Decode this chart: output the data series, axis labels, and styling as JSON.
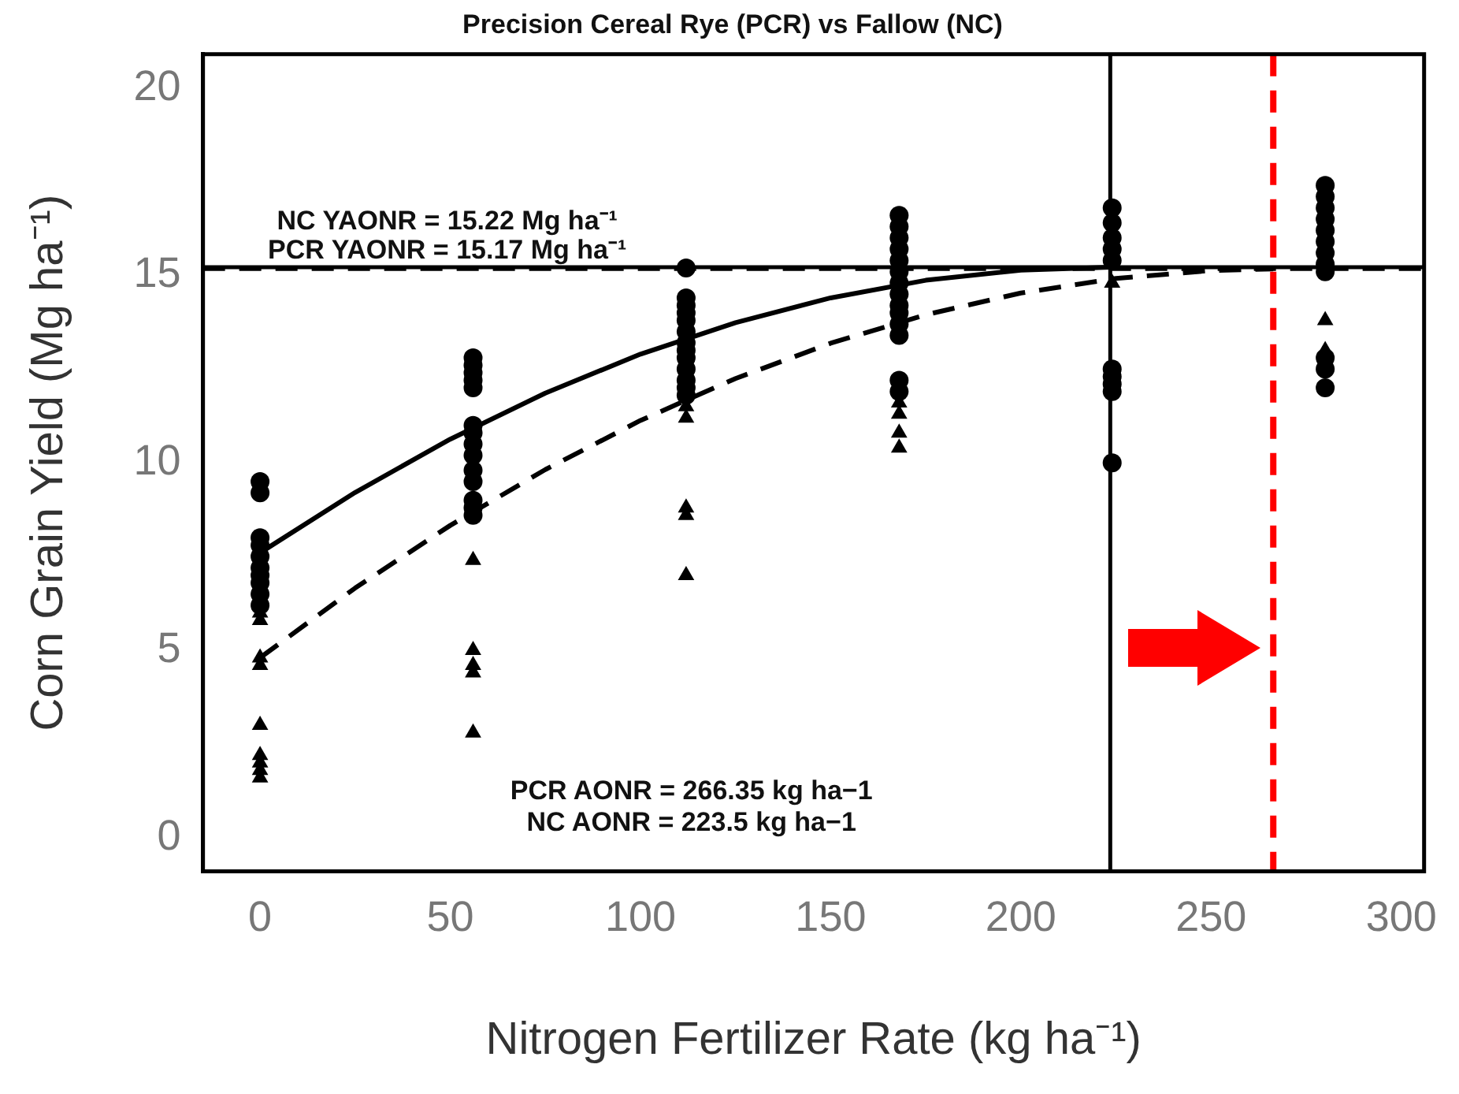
{
  "chart_data": {
    "type": "scatter",
    "title": "Precision Cereal Rye (PCR) vs Fallow (NC)",
    "xlabel": "Nitrogen Fertilizer Rate (kg ha⁻¹)",
    "ylabel": "Corn Grain Yield (Mg ha⁻¹)",
    "xlim": [
      -15,
      306
    ],
    "ylim": [
      -0.9,
      20.9
    ],
    "xticks": [
      0,
      50,
      100,
      150,
      200,
      250,
      300
    ],
    "yticks": [
      0,
      5,
      10,
      15,
      20
    ],
    "legend": false,
    "series": [
      {
        "type": "scatter",
        "marker": "circle",
        "color": "#000000",
        "x": [
          0,
          0,
          0,
          0,
          0,
          0,
          0,
          0,
          0,
          0,
          56,
          56,
          56,
          56,
          56,
          56,
          56,
          56,
          56,
          56,
          56,
          56,
          56,
          56,
          112,
          112,
          112,
          112,
          112,
          112,
          112,
          112,
          112,
          112,
          112,
          112,
          112,
          168,
          168,
          168,
          168,
          168,
          168,
          168,
          168,
          168,
          168,
          168,
          168,
          168,
          168,
          224,
          224,
          224,
          224,
          224,
          224,
          224,
          224,
          224,
          224,
          280,
          280,
          280,
          280,
          280,
          280,
          280,
          280,
          280,
          280,
          280,
          280
        ],
        "values": [
          9.5,
          9.2,
          8.0,
          7.8,
          7.5,
          7.2,
          7.0,
          6.8,
          6.5,
          6.2,
          12.8,
          12.6,
          12.4,
          12.2,
          12.0,
          11.0,
          10.8,
          10.5,
          10.2,
          9.8,
          9.5,
          9.0,
          8.8,
          8.6,
          15.2,
          14.4,
          14.2,
          14.0,
          13.8,
          13.5,
          13.2,
          13.0,
          12.8,
          12.5,
          12.2,
          12.0,
          11.8,
          16.6,
          16.3,
          16.0,
          15.7,
          15.4,
          15.1,
          14.8,
          14.5,
          14.2,
          14.0,
          13.7,
          13.4,
          12.2,
          11.9,
          16.8,
          16.4,
          16.0,
          15.7,
          15.4,
          12.5,
          12.3,
          12.1,
          11.9,
          10.0,
          17.4,
          17.1,
          16.8,
          16.5,
          16.2,
          15.9,
          15.6,
          15.3,
          15.1,
          12.8,
          12.5,
          12.0
        ]
      },
      {
        "type": "scatter",
        "marker": "triangle",
        "color": "#000000",
        "x": [
          0,
          0,
          0,
          0,
          0,
          0,
          0,
          0,
          0,
          56,
          56,
          56,
          56,
          56,
          112,
          112,
          112,
          112,
          112,
          168,
          168,
          168,
          168,
          224,
          280,
          280
        ],
        "values": [
          6.0,
          5.8,
          4.8,
          4.6,
          3.0,
          2.2,
          2.0,
          1.8,
          1.6,
          7.4,
          5.0,
          4.6,
          4.4,
          2.8,
          11.5,
          11.2,
          8.8,
          8.6,
          7.0,
          11.6,
          11.3,
          10.8,
          10.4,
          14.8,
          13.8,
          13.0
        ]
      },
      {
        "type": "line",
        "line_style": "solid",
        "marker": "none",
        "color": "#000000",
        "x": [
          0,
          25,
          50,
          75,
          100,
          125,
          150,
          175,
          200,
          223.5
        ],
        "values": [
          7.6,
          9.21,
          10.63,
          11.86,
          12.9,
          13.74,
          14.4,
          14.87,
          15.14,
          15.22
        ]
      },
      {
        "type": "line",
        "line_style": "dashed",
        "marker": "none",
        "color": "#000000",
        "x": [
          0,
          25,
          50,
          75,
          100,
          125,
          150,
          175,
          200,
          225,
          250,
          266.35
        ],
        "values": [
          4.8,
          6.66,
          8.33,
          9.82,
          11.13,
          12.25,
          13.19,
          13.95,
          14.53,
          14.92,
          15.13,
          15.17
        ]
      }
    ],
    "ref_lines": [
      {
        "axis": "y",
        "value": 15.22,
        "label": "NC YAONR = 15.22 Mg ha⁻¹",
        "color": "#000000",
        "line_style": "solid"
      },
      {
        "axis": "y",
        "value": 15.17,
        "label": "PCR YAONR = 15.17 Mg ha⁻¹",
        "color": "#000000",
        "line_style": "dashed"
      },
      {
        "axis": "x",
        "value": 266.35,
        "color": "#ff0000",
        "line_style": "dashed"
      },
      {
        "axis": "x",
        "value": 223.5,
        "color": "#000000",
        "line_style": "solid"
      }
    ],
    "annotations": [
      "PCR AONR = 266.35 kg ha−1",
      "NC AONR = 223.5 kg ha−1"
    ]
  }
}
